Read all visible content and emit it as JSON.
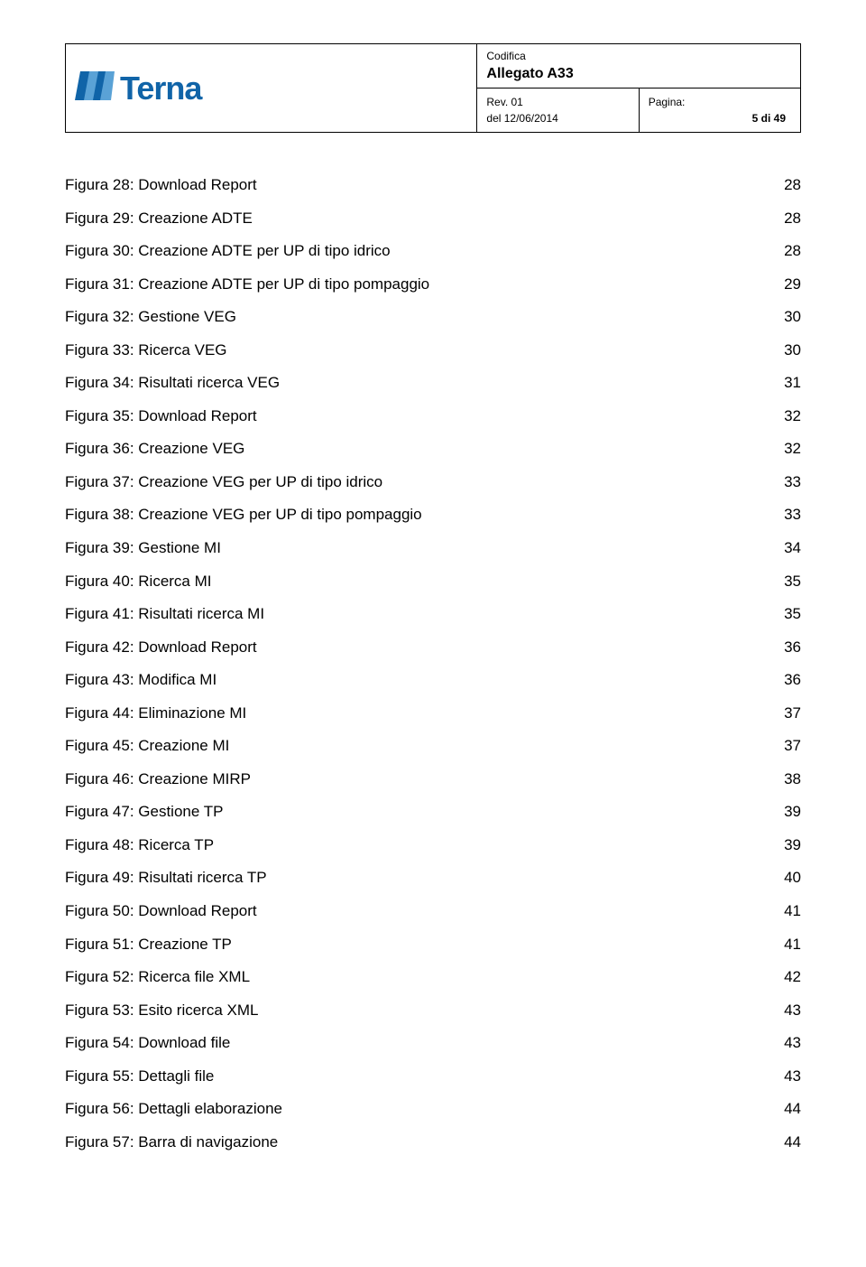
{
  "header": {
    "codifica": "Codifica",
    "allegato": "Allegato A33",
    "rev_label": "Rev. 01",
    "del_label": "del 12/06/2014",
    "pagina_label": "Pagina:",
    "pagina_value": "5 di 49",
    "logo_text": "Terna"
  },
  "toc": [
    {
      "label": "Figura 28: Download Report",
      "page": "28"
    },
    {
      "label": "Figura 29: Creazione ADTE",
      "page": "28"
    },
    {
      "label": "Figura 30: Creazione ADTE per UP di tipo idrico",
      "page": "28"
    },
    {
      "label": "Figura 31: Creazione ADTE per UP di tipo pompaggio",
      "page": "29"
    },
    {
      "label": "Figura 32:  Gestione VEG",
      "page": "30"
    },
    {
      "label": "Figura 33: Ricerca VEG",
      "page": "30"
    },
    {
      "label": "Figura 34: Risultati ricerca VEG",
      "page": "31"
    },
    {
      "label": "Figura 35: Download Report",
      "page": "32"
    },
    {
      "label": "Figura 36: Creazione VEG",
      "page": "32"
    },
    {
      "label": "Figura 37: Creazione VEG per UP di tipo idrico",
      "page": "33"
    },
    {
      "label": "Figura 38: Creazione VEG per UP di tipo pompaggio",
      "page": "33"
    },
    {
      "label": "Figura 39: Gestione MI",
      "page": "34"
    },
    {
      "label": "Figura 40:  Ricerca MI",
      "page": "35"
    },
    {
      "label": "Figura 41: Risultati ricerca MI",
      "page": "35"
    },
    {
      "label": "Figura 42: Download Report",
      "page": "36"
    },
    {
      "label": "Figura 43: Modifica MI",
      "page": "36"
    },
    {
      "label": "Figura 44: Eliminazione MI",
      "page": "37"
    },
    {
      "label": "Figura 45: Creazione MI",
      "page": "37"
    },
    {
      "label": "Figura 46: Creazione MIRP",
      "page": "38"
    },
    {
      "label": "Figura 47: Gestione TP",
      "page": "39"
    },
    {
      "label": "Figura 48: Ricerca TP",
      "page": "39"
    },
    {
      "label": "Figura 49: Risultati ricerca TP",
      "page": "40"
    },
    {
      "label": "Figura 50: Download Report",
      "page": "41"
    },
    {
      "label": "Figura 51: Creazione TP",
      "page": "41"
    },
    {
      "label": "Figura 52: Ricerca file XML",
      "page": "42"
    },
    {
      "label": "Figura 53: Esito ricerca XML",
      "page": "43"
    },
    {
      "label": "Figura 54: Download file",
      "page": "43"
    },
    {
      "label": "Figura 55: Dettagli file",
      "page": "43"
    },
    {
      "label": "Figura 56: Dettagli elaborazione",
      "page": "44"
    },
    {
      "label": "Figura 57: Barra di navigazione",
      "page": "44"
    }
  ],
  "colors": {
    "brand": "#1064a8",
    "text": "#000000",
    "background": "#ffffff",
    "border": "#000000"
  },
  "typography": {
    "body_fontsize_pt": 13,
    "logo_fontsize_pt": 28,
    "header_small_pt": 9
  }
}
